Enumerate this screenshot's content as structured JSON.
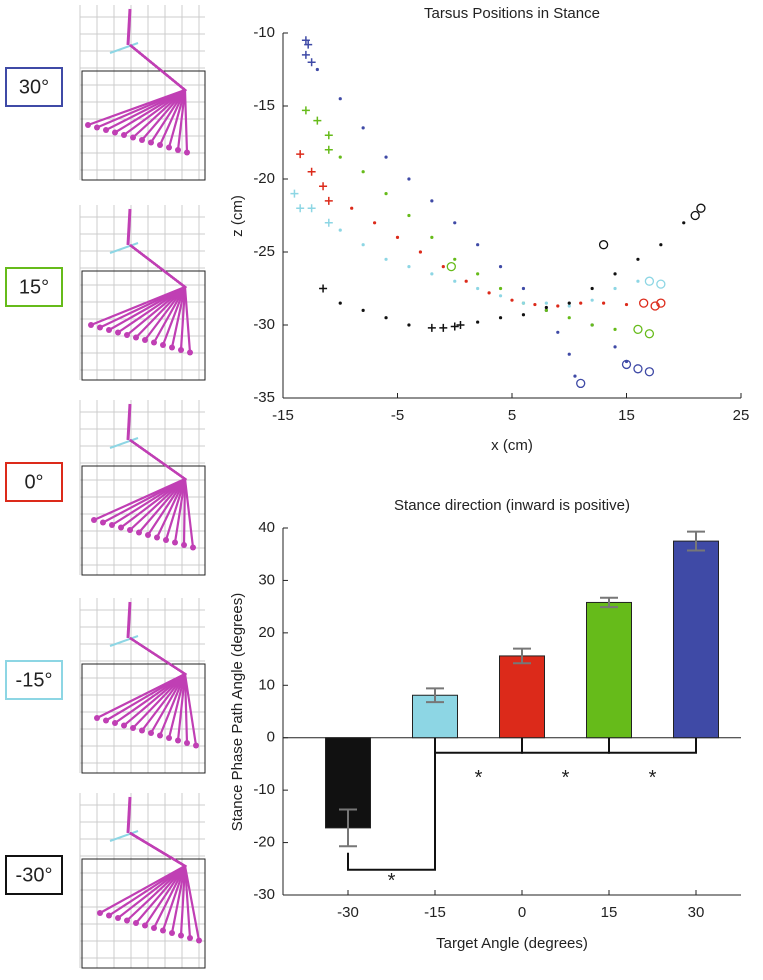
{
  "leg_panels": {
    "labels": [
      "30°",
      "15°",
      "0°",
      "-15°",
      "-30°"
    ],
    "colors": [
      "#3f4aa6",
      "#66bb1a",
      "#dc2a1a",
      "#8dd6e4",
      "#111111"
    ]
  },
  "chart_data": [
    {
      "type": "scatter",
      "title": "Tarsus Positions in Stance",
      "x_label": "x (cm)",
      "y_label": "z (cm)",
      "xlim": [
        -15,
        25
      ],
      "xticks": [
        -15,
        -5,
        5,
        15,
        25
      ],
      "ylim": [
        -35,
        -10
      ],
      "yticks": [
        -35,
        -30,
        -25,
        -20,
        -15,
        -10
      ],
      "series": [
        {
          "color": "#3f4aa6",
          "marker": "plus",
          "x": [
            -13,
            -13,
            -12.5,
            -12.8
          ],
          "values": [
            -10.5,
            -11.5,
            -12,
            -10.8
          ]
        },
        {
          "color": "#3f4aa6",
          "marker": "dot",
          "x": [
            -12,
            -10,
            -8,
            -6,
            -4,
            -2,
            0,
            2,
            4,
            6,
            8,
            9,
            10,
            10.5,
            12,
            14,
            15
          ],
          "values": [
            -12.5,
            -14.5,
            -16.5,
            -18.5,
            -20,
            -21.5,
            -23,
            -24.5,
            -26,
            -27.5,
            -29,
            -30.5,
            -32,
            -33.5,
            -30,
            -31.5,
            -32.5
          ]
        },
        {
          "color": "#3f4aa6",
          "marker": "circle",
          "x": [
            11,
            15,
            16,
            17
          ],
          "values": [
            -34,
            -32.7,
            -33,
            -33.2
          ]
        },
        {
          "color": "#66bb1a",
          "marker": "plus",
          "x": [
            -13,
            -12,
            -11,
            -11
          ],
          "values": [
            -15.3,
            -16,
            -17,
            -18
          ]
        },
        {
          "color": "#66bb1a",
          "marker": "dot",
          "x": [
            -10,
            -8,
            -6,
            -4,
            -2,
            0,
            2,
            4,
            6,
            8,
            10,
            12,
            14
          ],
          "values": [
            -18.5,
            -19.5,
            -21,
            -22.5,
            -24,
            -25.5,
            -26.5,
            -27.5,
            -28.5,
            -29,
            -29.5,
            -30,
            -30.3
          ]
        },
        {
          "color": "#66bb1a",
          "marker": "circle",
          "x": [
            -0.3,
            16,
            17
          ],
          "values": [
            -26,
            -30.3,
            -30.6
          ]
        },
        {
          "color": "#dc2a1a",
          "marker": "plus",
          "x": [
            -13.5,
            -12.5,
            -11.5,
            -11
          ],
          "values": [
            -18.3,
            -19.5,
            -20.5,
            -21.5
          ]
        },
        {
          "color": "#dc2a1a",
          "marker": "dot",
          "x": [
            -9,
            -7,
            -5,
            -3,
            -1,
            1,
            3,
            5,
            7,
            9,
            11,
            13,
            15
          ],
          "values": [
            -22,
            -23,
            -24,
            -25,
            -26,
            -27,
            -27.8,
            -28.3,
            -28.6,
            -28.7,
            -28.5,
            -28.5,
            -28.6
          ]
        },
        {
          "color": "#dc2a1a",
          "marker": "circle",
          "x": [
            16.5,
            17.5,
            18
          ],
          "values": [
            -28.5,
            -28.7,
            -28.5
          ]
        },
        {
          "color": "#8dd6e4",
          "marker": "plus",
          "x": [
            -14,
            -13.5,
            -12.5,
            -11
          ],
          "values": [
            -21,
            -22,
            -22,
            -23
          ]
        },
        {
          "color": "#8dd6e4",
          "marker": "dot",
          "x": [
            -10,
            -8,
            -6,
            -4,
            -2,
            0,
            2,
            4,
            6,
            8,
            10,
            12,
            14,
            16
          ],
          "values": [
            -23.5,
            -24.5,
            -25.5,
            -26,
            -26.5,
            -27,
            -27.5,
            -28,
            -28.5,
            -28.5,
            -28.7,
            -28.3,
            -27.5,
            -27
          ]
        },
        {
          "color": "#8dd6e4",
          "marker": "circle",
          "x": [
            17,
            18
          ],
          "values": [
            -27,
            -27.2
          ]
        },
        {
          "color": "#111111",
          "marker": "plus",
          "x": [
            -11.5,
            -2,
            -1,
            0,
            0.5
          ],
          "values": [
            -27.5,
            -30.2,
            -30.2,
            -30.1,
            -30
          ]
        },
        {
          "color": "#111111",
          "marker": "dot",
          "x": [
            -10,
            -8,
            -6,
            -4,
            2,
            4,
            6,
            8,
            10,
            12,
            14,
            16,
            18,
            20
          ],
          "values": [
            -28.5,
            -29,
            -29.5,
            -30,
            -29.8,
            -29.5,
            -29.3,
            -28.8,
            -28.5,
            -27.5,
            -26.5,
            -25.5,
            -24.5,
            -23
          ]
        },
        {
          "color": "#111111",
          "marker": "circle",
          "x": [
            13,
            21,
            21.5
          ],
          "values": [
            -24.5,
            -22.5,
            -22
          ]
        }
      ]
    },
    {
      "type": "bar",
      "title": "Stance direction (inward is positive)",
      "x_label": "Target Angle (degrees)",
      "y_label": "Stance Phase Path Angle (degrees)",
      "categories": [
        "-30",
        "-15",
        "0",
        "15",
        "30"
      ],
      "values": [
        -17.2,
        8.1,
        15.6,
        25.8,
        37.5
      ],
      "errors": [
        3.5,
        1.3,
        1.4,
        0.9,
        1.8
      ],
      "colors": [
        "#111111",
        "#8dd6e4",
        "#dc2a1a",
        "#66bb1a",
        "#3f4aa6"
      ],
      "ylim": [
        -30,
        40
      ],
      "yticks": [
        -30,
        -20,
        -10,
        0,
        10,
        20,
        30,
        40
      ],
      "annotations": [
        "*",
        "*",
        "*",
        "*"
      ]
    }
  ]
}
